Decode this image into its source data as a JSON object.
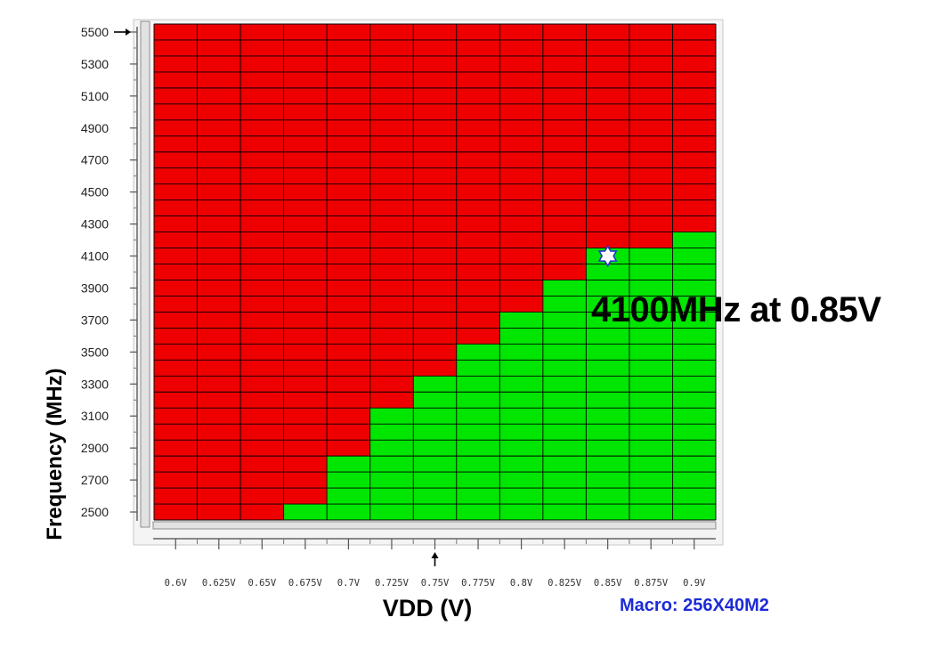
{
  "chart_data": {
    "type": "heatmap",
    "title": "",
    "xlabel": "VDD (V)",
    "ylabel": "Frequency (MHz)",
    "x_categories": [
      "0.6V",
      "0.625V",
      "0.65V",
      "0.675V",
      "0.7V",
      "0.725V",
      "0.75V",
      "0.775V",
      "0.8V",
      "0.825V",
      "0.85V",
      "0.875V",
      "0.9V"
    ],
    "y_tick_labels": [
      "5500",
      "5300",
      "5100",
      "4900",
      "4700",
      "4500",
      "4300",
      "4100",
      "3900",
      "3700",
      "3500",
      "3300",
      "3100",
      "2900",
      "2700",
      "2500"
    ],
    "y_min": 2500,
    "y_max": 5500,
    "y_step": 100,
    "pass_color": "#00e600",
    "fail_color": "#ee0000",
    "max_pass_frequency_per_vdd": [
      null,
      null,
      null,
      2500,
      2800,
      3100,
      3300,
      3500,
      3700,
      3900,
      4100,
      4100,
      4200
    ],
    "highlight_point": {
      "x": "0.85V",
      "y": 4100
    },
    "annotation": "4100MHz at 0.85V",
    "footnote": "Macro: 256X40M2",
    "y_marker_value": 5500,
    "x_marker_value": "0.75V"
  }
}
